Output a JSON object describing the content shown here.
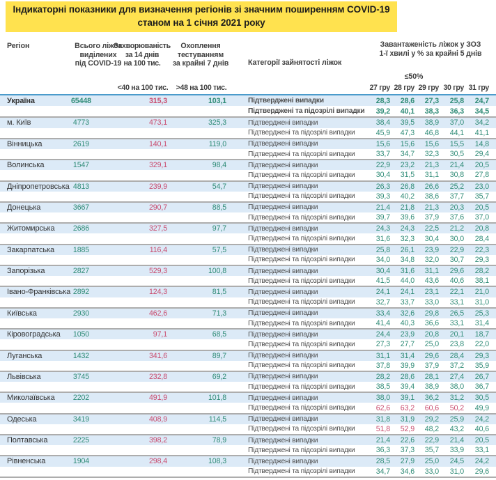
{
  "title": {
    "line1": "Індикаторні показники для визначення регіонів зі значним поширенням COVID-19",
    "line2": "станом на 1 січня 2021 року"
  },
  "header": {
    "region": "Регіон",
    "beds": "Всього ліжок\nвиділених\nпід COVID-19",
    "incidence": "Захворюваність\nза 14 днів\nна 100 тис.",
    "incidence_threshold": "<40 на 100 тис.",
    "testing": "Охоплення\nтестуванням\nза крайні 7 днів",
    "testing_threshold": ">48 на 100 тис.",
    "categories": "Категорії зайнятості ліжок",
    "load": "Завантаженість ліжок у ЗОЗ\n1-ї хвилі у % за крайні 5 днів",
    "load_threshold": "≤50%",
    "dates": [
      "27 гру",
      "28 гру",
      "29 гру",
      "30 гру",
      "31 гру"
    ]
  },
  "row_labels": {
    "confirmed": "Підтверджені випадки",
    "suspected": "Підтверджені та підозрілі випадки"
  },
  "colors": {
    "green": "#2E8B76",
    "red": "#C94A6D",
    "row_blue": "#DCEAF7",
    "separator": "#ADADAD",
    "header_line": "#4B9BCB",
    "title_highlight": "#FFE24F"
  },
  "regions": [
    {
      "name": "Україна",
      "bold": true,
      "beds": "65448",
      "incidence": "315,3",
      "testing": "103,1",
      "confirmed": [
        "28,3",
        "28,6",
        "27,3",
        "25,8",
        "24,7"
      ],
      "suspected": [
        "39,2",
        "40,1",
        "38,3",
        "36,3",
        "34,5"
      ]
    },
    {
      "name": "м. Київ",
      "beds": "4773",
      "incidence": "473,1",
      "testing": "325,3",
      "confirmed": [
        "38,4",
        "39,5",
        "38,9",
        "37,0",
        "34,2"
      ],
      "suspected": [
        "45,9",
        "47,3",
        "46,8",
        "44,1",
        "41,1"
      ]
    },
    {
      "name": "Вінницька",
      "beds": "2619",
      "incidence": "140,1",
      "testing": "119,0",
      "confirmed": [
        "15,6",
        "15,6",
        "15,6",
        "15,5",
        "14,8"
      ],
      "suspected": [
        "33,7",
        "34,7",
        "32,3",
        "30,5",
        "29,4"
      ]
    },
    {
      "name": "Волинська",
      "beds": "1547",
      "incidence": "329,1",
      "testing": "98,4",
      "confirmed": [
        "22,9",
        "23,2",
        "21,3",
        "21,4",
        "20,5"
      ],
      "suspected": [
        "30,4",
        "31,5",
        "31,1",
        "30,8",
        "27,8"
      ]
    },
    {
      "name": "Дніпропетровська",
      "beds": "4813",
      "incidence": "239,9",
      "testing": "54,7",
      "confirmed": [
        "26,3",
        "26,8",
        "26,6",
        "25,2",
        "23,0"
      ],
      "suspected": [
        "39,3",
        "40,2",
        "38,6",
        "37,7",
        "35,7"
      ]
    },
    {
      "name": "Донецька",
      "beds": "3667",
      "incidence": "290,7",
      "testing": "88,5",
      "confirmed": [
        "21,4",
        "21,8",
        "21,3",
        "20,3",
        "20,5"
      ],
      "suspected": [
        "39,7",
        "39,6",
        "37,9",
        "37,6",
        "37,0"
      ]
    },
    {
      "name": "Житомирська",
      "beds": "2686",
      "incidence": "327,5",
      "testing": "97,7",
      "confirmed": [
        "24,3",
        "24,3",
        "22,5",
        "21,2",
        "20,8"
      ],
      "suspected": [
        "31,6",
        "32,3",
        "30,4",
        "30,0",
        "28,4"
      ]
    },
    {
      "name": "Закарпатська",
      "beds": "1885",
      "incidence": "116,4",
      "testing": "57,5",
      "confirmed": [
        "25,8",
        "26,1",
        "23,9",
        "22,9",
        "22,3"
      ],
      "suspected": [
        "34,0",
        "34,8",
        "32,0",
        "30,7",
        "29,3"
      ]
    },
    {
      "name": "Запорізька",
      "beds": "2827",
      "incidence": "529,3",
      "testing": "100,8",
      "confirmed": [
        "30,4",
        "31,6",
        "31,1",
        "29,6",
        "28,2"
      ],
      "suspected": [
        "41,5",
        "44,0",
        "43,6",
        "40,6",
        "38,1"
      ]
    },
    {
      "name": "Івано-Франківська",
      "beds": "2892",
      "incidence": "124,3",
      "testing": "81,5",
      "confirmed": [
        "24,1",
        "24,1",
        "23,1",
        "22,1",
        "21,0"
      ],
      "suspected": [
        "32,7",
        "33,7",
        "33,0",
        "33,1",
        "31,0"
      ]
    },
    {
      "name": "Київська",
      "beds": "2930",
      "incidence": "462,6",
      "testing": "71,3",
      "confirmed": [
        "33,4",
        "32,6",
        "29,8",
        "26,5",
        "25,3"
      ],
      "suspected": [
        "41,4",
        "40,3",
        "36,6",
        "33,1",
        "31,4"
      ]
    },
    {
      "name": "Кіровоградська",
      "beds": "1050",
      "incidence": "97,1",
      "testing": "68,5",
      "confirmed": [
        "24,4",
        "23,9",
        "20,8",
        "20,1",
        "18,7"
      ],
      "suspected": [
        "27,3",
        "27,7",
        "25,0",
        "23,8",
        "22,0"
      ]
    },
    {
      "name": "Луганська",
      "beds": "1432",
      "incidence": "341,6",
      "testing": "89,7",
      "confirmed": [
        "31,1",
        "31,4",
        "29,6",
        "28,4",
        "29,3"
      ],
      "suspected": [
        "37,8",
        "39,9",
        "37,9",
        "37,2",
        "35,9"
      ]
    },
    {
      "name": "Львівська",
      "beds": "3745",
      "incidence": "232,8",
      "testing": "69,2",
      "confirmed": [
        "28,2",
        "28,6",
        "28,1",
        "27,4",
        "26,7"
      ],
      "suspected": [
        "38,5",
        "39,4",
        "38,9",
        "38,0",
        "36,7"
      ]
    },
    {
      "name": "Миколаївська",
      "beds": "2202",
      "incidence": "491,9",
      "testing": "101,8",
      "confirmed": [
        "38,0",
        "39,1",
        "36,2",
        "31,2",
        "30,5"
      ],
      "suspected": [
        "62,6",
        "63,2",
        "60,6",
        "50,2",
        "49,9"
      ],
      "suspected_red": [
        true,
        true,
        true,
        true,
        false
      ]
    },
    {
      "name": "Одеська",
      "beds": "3419",
      "incidence": "408,9",
      "testing": "114,5",
      "confirmed": [
        "31,8",
        "31,9",
        "29,2",
        "25,9",
        "24,2"
      ],
      "suspected": [
        "51,8",
        "52,9",
        "48,2",
        "43,2",
        "40,6"
      ],
      "suspected_red": [
        true,
        true,
        false,
        false,
        false
      ]
    },
    {
      "name": "Полтавська",
      "beds": "2225",
      "incidence": "398,2",
      "testing": "78,9",
      "confirmed": [
        "21,4",
        "22,6",
        "22,9",
        "21,4",
        "20,5"
      ],
      "suspected": [
        "36,3",
        "37,3",
        "35,7",
        "33,9",
        "33,1"
      ]
    },
    {
      "name": "Рівненська",
      "beds": "1904",
      "incidence": "298,4",
      "testing": "108,3",
      "confirmed": [
        "28,5",
        "27,9",
        "25,0",
        "24,5",
        "24,2"
      ],
      "suspected": [
        "34,7",
        "34,6",
        "33,0",
        "31,0",
        "29,6"
      ]
    }
  ]
}
